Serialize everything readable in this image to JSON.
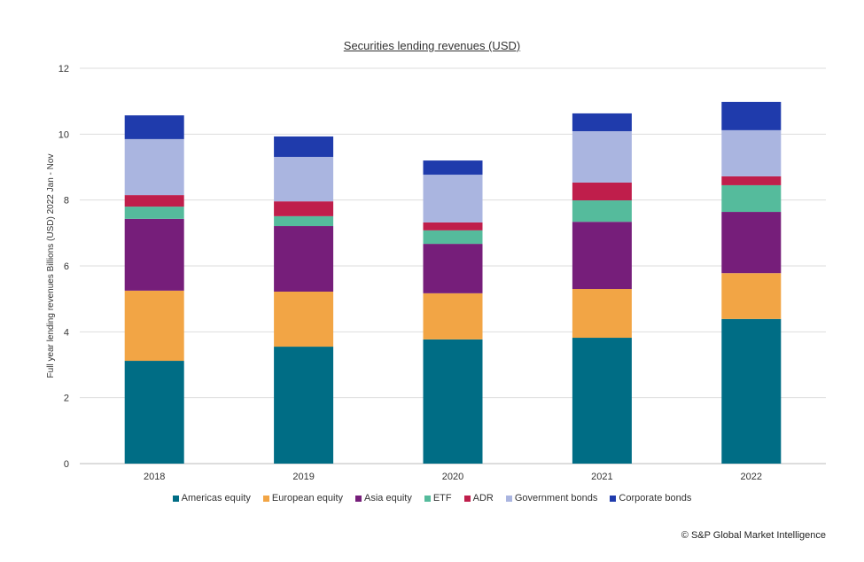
{
  "chart_data": {
    "type": "bar",
    "stacked": true,
    "title": "Securities lending revenues (USD)",
    "xlabel": "",
    "ylabel": "Full year lending revenues Billions (USD) 2022 Jan - Nov",
    "ylim": [
      0,
      12
    ],
    "yticks": [
      0,
      2,
      4,
      6,
      8,
      10,
      12
    ],
    "grid": true,
    "legend": "bottom",
    "categories": [
      "2018",
      "2019",
      "2020",
      "2021",
      "2022"
    ],
    "series": [
      {
        "name": "Americas equity",
        "color": "#006d85",
        "values": [
          3.12,
          3.55,
          3.77,
          3.82,
          4.39
        ]
      },
      {
        "name": "European equity",
        "color": "#f2a545",
        "values": [
          2.13,
          1.67,
          1.4,
          1.48,
          1.39
        ]
      },
      {
        "name": "Asia equity",
        "color": "#761e7a",
        "values": [
          2.18,
          1.99,
          1.5,
          2.04,
          1.86
        ]
      },
      {
        "name": "ETF",
        "color": "#55bb9c",
        "values": [
          0.37,
          0.3,
          0.41,
          0.65,
          0.81
        ]
      },
      {
        "name": "ADR",
        "color": "#bf1e4b",
        "values": [
          0.35,
          0.45,
          0.24,
          0.54,
          0.27
        ]
      },
      {
        "name": "Government bonds",
        "color": "#aab5e0",
        "values": [
          1.7,
          1.35,
          1.45,
          1.56,
          1.4
        ]
      },
      {
        "name": "Corporate bonds",
        "color": "#1f3bac",
        "values": [
          0.72,
          0.62,
          0.43,
          0.54,
          0.86
        ]
      }
    ]
  },
  "credit": "© S&P Global Market Intelligence"
}
